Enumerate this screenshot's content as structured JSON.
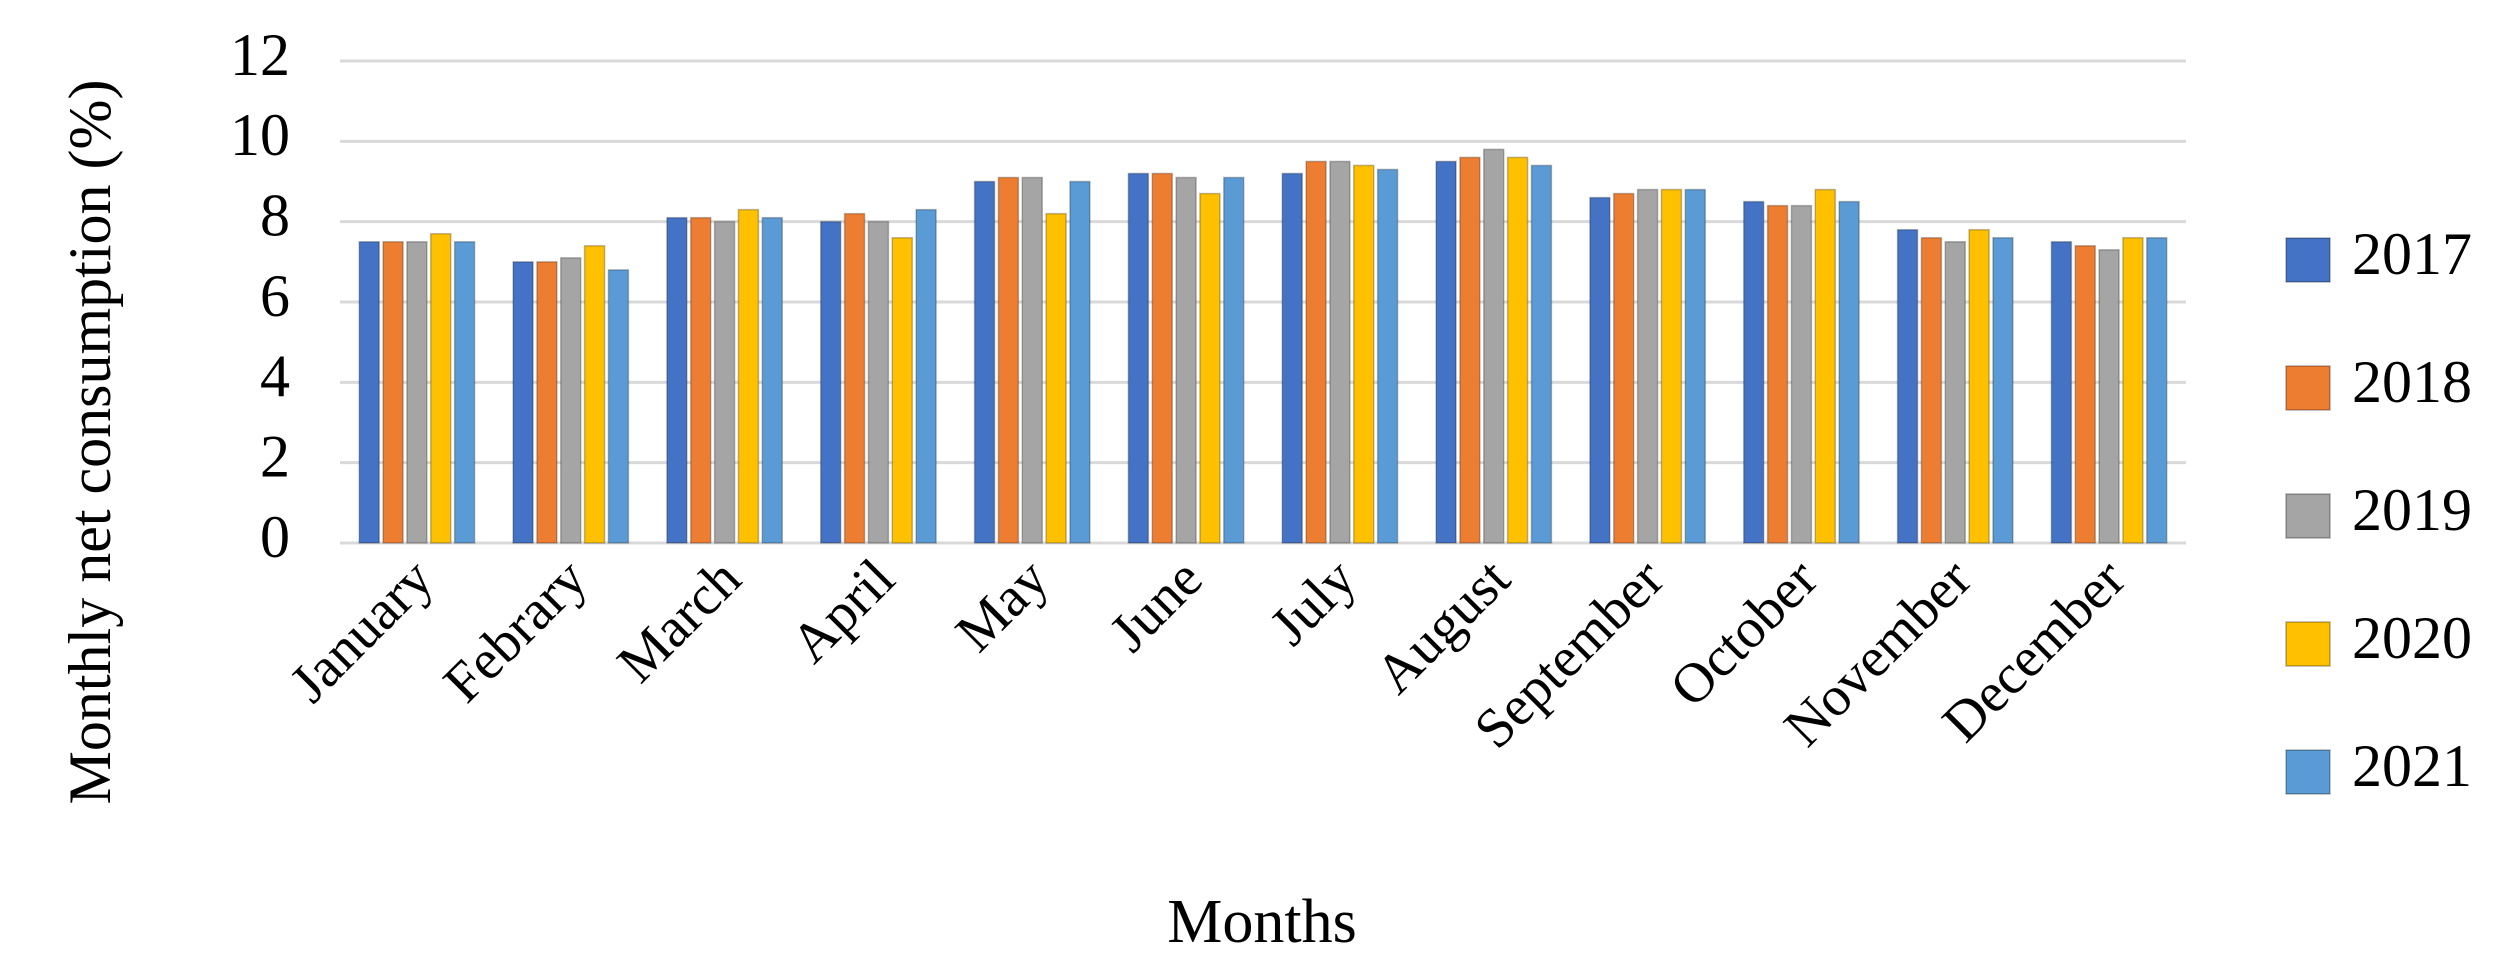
{
  "chart_data": {
    "type": "bar",
    "x_label": "Months",
    "y_label": "Monthly net consumption (%)",
    "categories": [
      "January",
      "Febrary",
      "March",
      "April",
      "May",
      "June",
      "July",
      "August",
      "September",
      "October",
      "November",
      "December"
    ],
    "series": [
      {
        "name": "2017",
        "color": "#4472c4",
        "values": [
          7.5,
          7.0,
          8.1,
          8.0,
          9.0,
          9.2,
          9.2,
          9.5,
          8.6,
          8.5,
          7.8,
          7.5
        ]
      },
      {
        "name": "2018",
        "color": "#ed7d31",
        "values": [
          7.5,
          7.0,
          8.1,
          8.2,
          9.1,
          9.2,
          9.5,
          9.6,
          8.7,
          8.4,
          7.6,
          7.4
        ]
      },
      {
        "name": "2019",
        "color": "#a5a5a5",
        "values": [
          7.5,
          7.1,
          8.0,
          8.0,
          9.1,
          9.1,
          9.5,
          9.8,
          8.8,
          8.4,
          7.5,
          7.3
        ]
      },
      {
        "name": "2020",
        "color": "#ffc000",
        "values": [
          7.7,
          7.4,
          8.3,
          7.6,
          8.2,
          8.7,
          9.4,
          9.6,
          8.8,
          8.8,
          7.8,
          7.6
        ]
      },
      {
        "name": "2021",
        "color": "#5b9bd5",
        "values": [
          7.5,
          6.8,
          8.1,
          8.3,
          9.0,
          9.1,
          9.3,
          9.4,
          8.8,
          8.5,
          7.6,
          7.6
        ]
      }
    ],
    "ylim": [
      0,
      12
    ],
    "yticks": [
      0,
      2,
      4,
      6,
      8,
      10,
      12
    ],
    "grid": true,
    "legend": "right"
  }
}
